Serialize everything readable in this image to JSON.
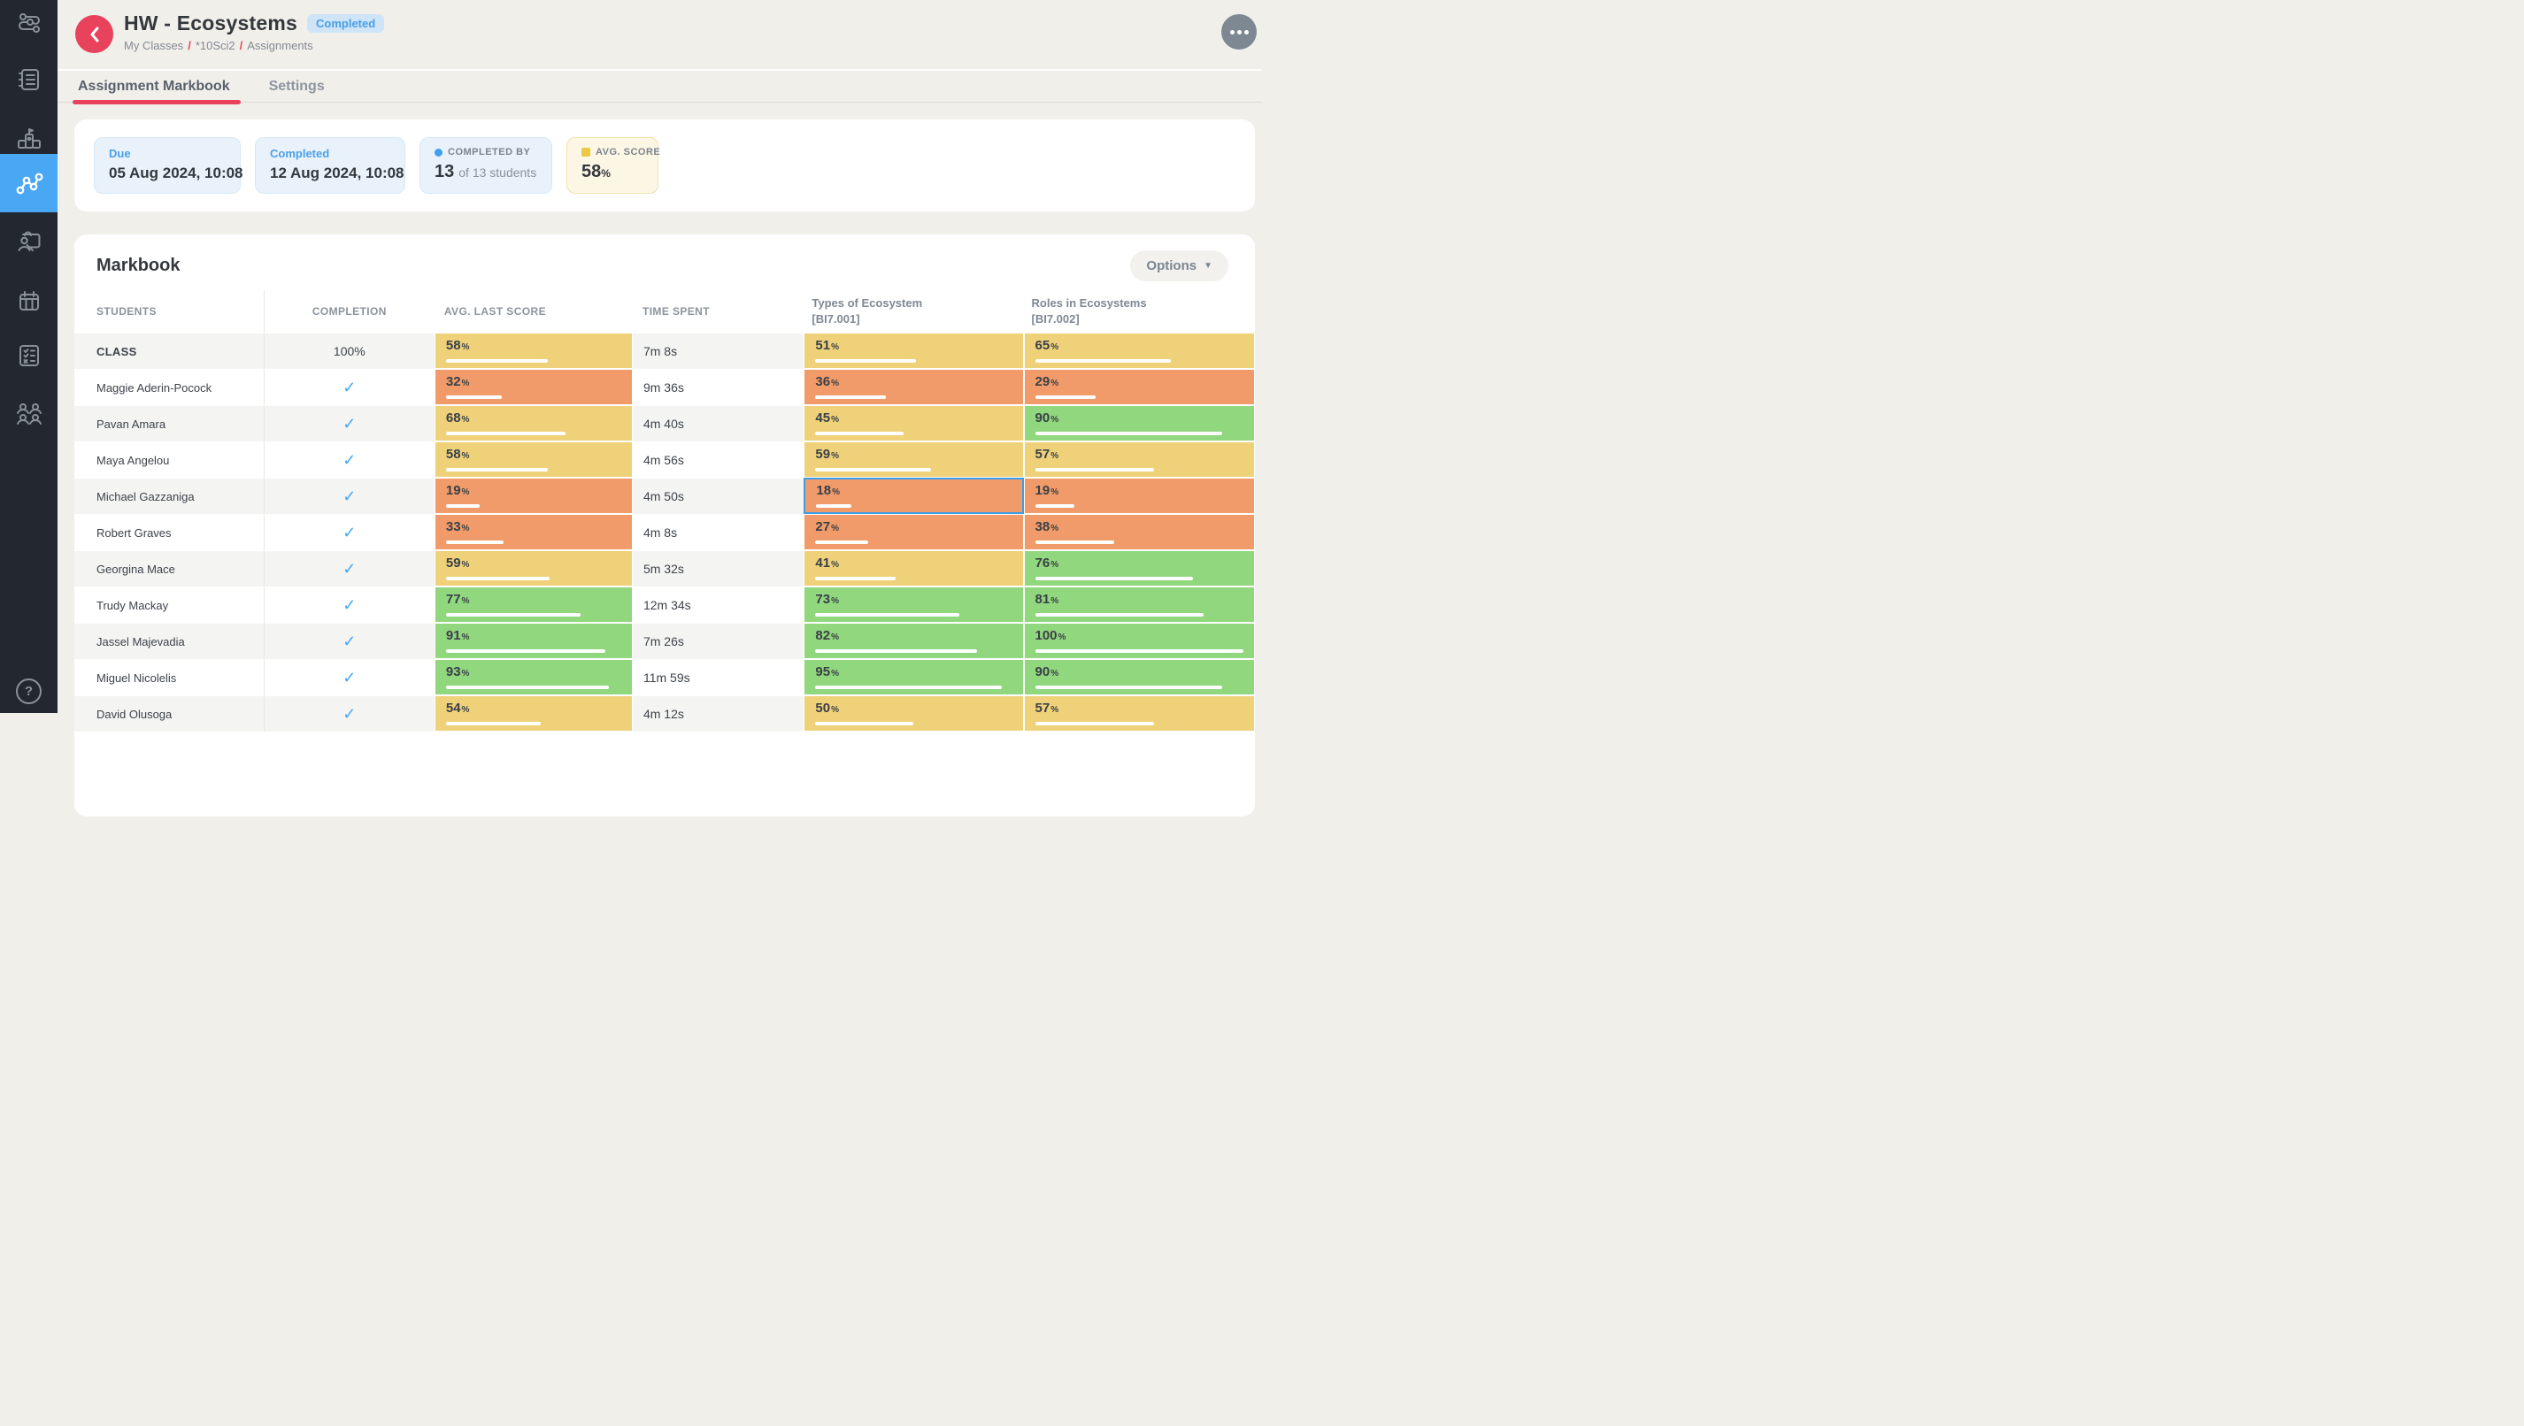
{
  "header": {
    "title": "HW - Ecosystems",
    "status_badge": "Completed",
    "breadcrumb": [
      "My Classes",
      "*10Sci2",
      "Assignments"
    ]
  },
  "tabs": [
    {
      "label": "Assignment Markbook",
      "active": true
    },
    {
      "label": "Settings",
      "active": false
    }
  ],
  "summary": {
    "due": {
      "label": "Due",
      "value": "05 Aug 2024, 10:08"
    },
    "completed": {
      "label": "Completed",
      "value": "12 Aug 2024, 10:08"
    },
    "completed_by": {
      "label": "COMPLETED BY",
      "value": "13",
      "suffix": "of 13 students"
    },
    "avg_score": {
      "label": "AVG. SCORE",
      "value": "58",
      "unit": "%"
    }
  },
  "markbook": {
    "title": "Markbook",
    "options_label": "Options",
    "columns": [
      {
        "key": "student",
        "label": "STUDENTS"
      },
      {
        "key": "completion",
        "label": "COMPLETION"
      },
      {
        "key": "avg_last_score",
        "label": "AVG. LAST SCORE"
      },
      {
        "key": "time_spent",
        "label": "TIME SPENT"
      },
      {
        "key": "types_of_ecosystem",
        "label": "Types of Ecosystem",
        "sublabel": "[BI7.001]"
      },
      {
        "key": "roles_in_ecosystems",
        "label": "Roles in Ecosystems",
        "sublabel": "[BI7.002]"
      }
    ],
    "rows": [
      {
        "student": "CLASS",
        "completion": "100%",
        "avg_last_score": 58,
        "time_spent": "7m 8s",
        "types_of_ecosystem": 51,
        "roles_in_ecosystems": 65
      },
      {
        "student": "Maggie Aderin-Pocock",
        "completion": "check",
        "avg_last_score": 32,
        "time_spent": "9m 36s",
        "types_of_ecosystem": 36,
        "roles_in_ecosystems": 29
      },
      {
        "student": "Pavan Amara",
        "completion": "check",
        "avg_last_score": 68,
        "time_spent": "4m 40s",
        "types_of_ecosystem": 45,
        "roles_in_ecosystems": 90
      },
      {
        "student": "Maya Angelou",
        "completion": "check",
        "avg_last_score": 58,
        "time_spent": "4m 56s",
        "types_of_ecosystem": 59,
        "roles_in_ecosystems": 57
      },
      {
        "student": "Michael Gazzaniga",
        "completion": "check",
        "avg_last_score": 19,
        "time_spent": "4m 50s",
        "types_of_ecosystem": 18,
        "roles_in_ecosystems": 19
      },
      {
        "student": "Robert Graves",
        "completion": "check",
        "avg_last_score": 33,
        "time_spent": "4m 8s",
        "types_of_ecosystem": 27,
        "roles_in_ecosystems": 38
      },
      {
        "student": "Georgina Mace",
        "completion": "check",
        "avg_last_score": 59,
        "time_spent": "5m 32s",
        "types_of_ecosystem": 41,
        "roles_in_ecosystems": 76
      },
      {
        "student": "Trudy Mackay",
        "completion": "check",
        "avg_last_score": 77,
        "time_spent": "12m 34s",
        "types_of_ecosystem": 73,
        "roles_in_ecosystems": 81
      },
      {
        "student": "Jassel Majevadia",
        "completion": "check",
        "avg_last_score": 91,
        "time_spent": "7m 26s",
        "types_of_ecosystem": 82,
        "roles_in_ecosystems": 100
      },
      {
        "student": "Miguel Nicolelis",
        "completion": "check",
        "avg_last_score": 93,
        "time_spent": "11m 59s",
        "types_of_ecosystem": 95,
        "roles_in_ecosystems": 90
      },
      {
        "student": "David Olusoga",
        "completion": "check",
        "avg_last_score": 54,
        "time_spent": "4m 12s",
        "types_of_ecosystem": 50,
        "roles_in_ecosystems": 57
      }
    ],
    "selected_cell": {
      "row_index": 4,
      "column": "types_of_ecosystem"
    },
    "score_thresholds": {
      "mid": 40,
      "high": 70
    }
  },
  "sidebar": {
    "icons": [
      "route-icon",
      "notebook-icon",
      "podium-icon",
      "markbook-chart-icon",
      "teacher-icon",
      "calendar-icon",
      "quiz-checklist-icon",
      "groups-icon",
      "help-icon"
    ],
    "active_icon": "markbook-chart-icon"
  },
  "colors": {
    "accent-red": "#e8425c",
    "accent-blue": "#4aa7f3",
    "selection-blue": "#3f9be6",
    "score-low": "#f09b69",
    "score-mid": "#efd17a",
    "score-high": "#90d77e"
  }
}
